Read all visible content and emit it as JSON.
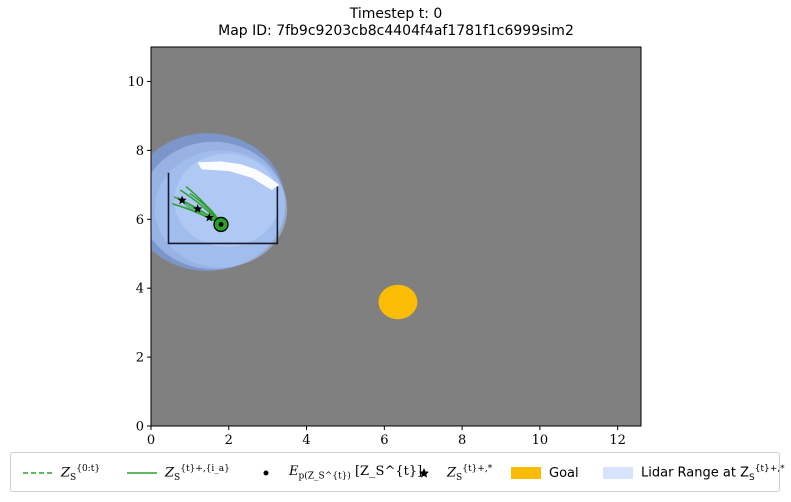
{
  "title": {
    "line1": "Timestep t: 0",
    "line2": "Map ID: 7fb9c9203cb8c4404f4af1781f1c6999sim2"
  },
  "chart_data": {
    "type": "scatter",
    "xlim": [
      0,
      12.6
    ],
    "ylim": [
      0,
      11
    ],
    "x_ticks": [
      "0",
      "2",
      "4",
      "6",
      "8",
      "10",
      "12"
    ],
    "y_ticks": [
      "0",
      "2",
      "4",
      "6",
      "8",
      "10"
    ],
    "x_tick_values": [
      0,
      2,
      4,
      6,
      8,
      10,
      12
    ],
    "y_tick_values": [
      0,
      2,
      4,
      6,
      8,
      10
    ],
    "background_color": "#808080",
    "goal": {
      "center": [
        6.35,
        3.6
      ],
      "color": "#fbbc05"
    },
    "robot_position": [
      1.8,
      5.85
    ],
    "star_points": [
      [
        0.8,
        6.55
      ],
      [
        1.2,
        6.3
      ],
      [
        1.5,
        6.05
      ]
    ],
    "obstacle_box": {
      "x": [
        0.45,
        3.25
      ],
      "y": [
        5.3,
        7.35
      ]
    },
    "lidar_color": "#a9c4f5",
    "lidar_discs": [
      {
        "center": [
          1.45,
          6.5
        ],
        "radius": 2.0
      },
      {
        "center": [
          1.6,
          6.4
        ],
        "radius": 1.85
      },
      {
        "center": [
          1.8,
          6.3
        ],
        "radius": 1.7
      }
    ],
    "trajectory_color": "#2ca02c"
  },
  "legend": {
    "items": [
      {
        "kind": "dashed-line",
        "label_main": "Z",
        "label_sub": "S",
        "label_sup": "{0:t}"
      },
      {
        "kind": "solid-line",
        "label_main": "Z",
        "label_sub": "S",
        "label_sup": "{t}+,{i_a}"
      },
      {
        "kind": "dot",
        "label_main": "E",
        "label_sub": "p(Z_S^{t})",
        "label_sup": "[Z_S^{t}]"
      },
      {
        "kind": "star",
        "label_main": "Z",
        "label_sub": "S",
        "label_sup": "{t}+,*"
      },
      {
        "kind": "goal-patch",
        "label_text": "Goal"
      },
      {
        "kind": "lidar-patch",
        "label_text": "Lidar Range at Z",
        "label_sup": "{t}+,*",
        "label_sub": "S"
      }
    ],
    "colors": {
      "trajectory": "#2ca02c",
      "goal": "#fbbc05",
      "lidar": "#d6e3fb"
    }
  }
}
